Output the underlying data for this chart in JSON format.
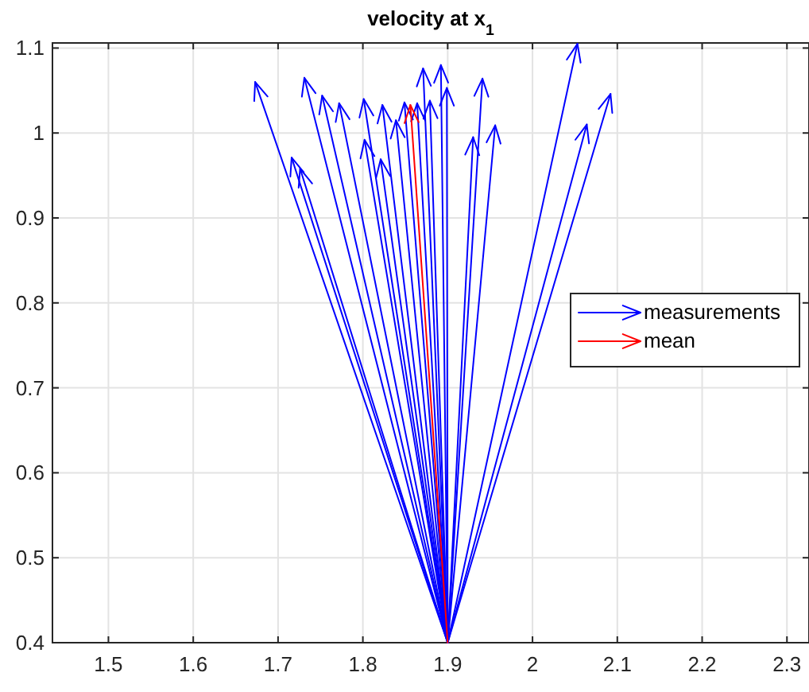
{
  "chart_data": {
    "type": "line",
    "title": "velocity at x$_{1}$",
    "xlim": [
      1.434,
      2.326
    ],
    "ylim": [
      0.4,
      1.106
    ],
    "xticks": [
      1.5,
      1.6,
      1.7,
      1.8,
      1.9,
      2,
      2.1,
      2.2,
      2.3
    ],
    "yticks": [
      0.4,
      0.5,
      0.6,
      0.7,
      0.8,
      0.9,
      1,
      1.1
    ],
    "grid": true,
    "legend": "right",
    "series": [
      {
        "name": "measurements",
        "color": "#0000ff",
        "x": [
          1.9,
          1.673
        ],
        "values": [
          0.4,
          1.06
        ]
      },
      {
        "color": "#0000ff",
        "x": [
          1.9,
          1.731
        ],
        "values": [
          0.4,
          1.065
        ]
      },
      {
        "color": "#0000ff",
        "x": [
          1.9,
          1.752
        ],
        "values": [
          0.4,
          1.044
        ]
      },
      {
        "color": "#0000ff",
        "x": [
          1.9,
          1.772
        ],
        "values": [
          0.4,
          1.035
        ]
      },
      {
        "color": "#0000ff",
        "x": [
          1.9,
          1.801
        ],
        "values": [
          0.4,
          1.04
        ]
      },
      {
        "color": "#0000ff",
        "x": [
          1.9,
          1.823
        ],
        "values": [
          0.4,
          1.033
        ]
      },
      {
        "color": "#0000ff",
        "x": [
          1.9,
          1.716
        ],
        "values": [
          0.4,
          0.971
        ]
      },
      {
        "color": "#0000ff",
        "x": [
          1.9,
          1.726
        ],
        "values": [
          0.4,
          0.958
        ]
      },
      {
        "color": "#0000ff",
        "x": [
          1.9,
          1.802
        ],
        "values": [
          0.4,
          0.992
        ]
      },
      {
        "color": "#0000ff",
        "x": [
          1.9,
          1.821
        ],
        "values": [
          0.4,
          0.969
        ]
      },
      {
        "color": "#0000ff",
        "x": [
          1.9,
          1.839
        ],
        "values": [
          0.4,
          1.015
        ]
      },
      {
        "color": "#0000ff",
        "x": [
          1.9,
          1.849
        ],
        "values": [
          0.4,
          1.036
        ]
      },
      {
        "color": "#0000ff",
        "x": [
          1.9,
          1.871
        ],
        "values": [
          0.4,
          1.076
        ]
      },
      {
        "color": "#0000ff",
        "x": [
          1.9,
          1.892
        ],
        "values": [
          0.4,
          1.08
        ]
      },
      {
        "color": "#0000ff",
        "x": [
          1.9,
          1.899
        ],
        "values": [
          0.4,
          1.053
        ]
      },
      {
        "color": "#0000ff",
        "x": [
          1.9,
          1.864
        ],
        "values": [
          0.4,
          1.035
        ]
      },
      {
        "color": "#0000ff",
        "x": [
          1.9,
          1.879
        ],
        "values": [
          0.4,
          1.038
        ]
      },
      {
        "color": "#0000ff",
        "x": [
          1.9,
          1.93
        ],
        "values": [
          0.4,
          0.995
        ]
      },
      {
        "color": "#0000ff",
        "x": [
          1.9,
          1.941
        ],
        "values": [
          0.4,
          1.064
        ]
      },
      {
        "color": "#0000ff",
        "x": [
          1.9,
          1.956
        ],
        "values": [
          0.4,
          1.009
        ]
      },
      {
        "color": "#0000ff",
        "x": [
          1.9,
          2.053
        ],
        "values": [
          0.4,
          1.105
        ]
      },
      {
        "color": "#0000ff",
        "x": [
          1.9,
          2.064
        ],
        "values": [
          0.4,
          1.01
        ]
      },
      {
        "color": "#0000ff",
        "x": [
          1.9,
          2.092
        ],
        "values": [
          0.4,
          1.046
        ]
      },
      {
        "name": "mean",
        "color": "#ff0000",
        "x": [
          1.9,
          1.856
        ],
        "values": [
          0.4,
          1.033
        ]
      }
    ]
  }
}
